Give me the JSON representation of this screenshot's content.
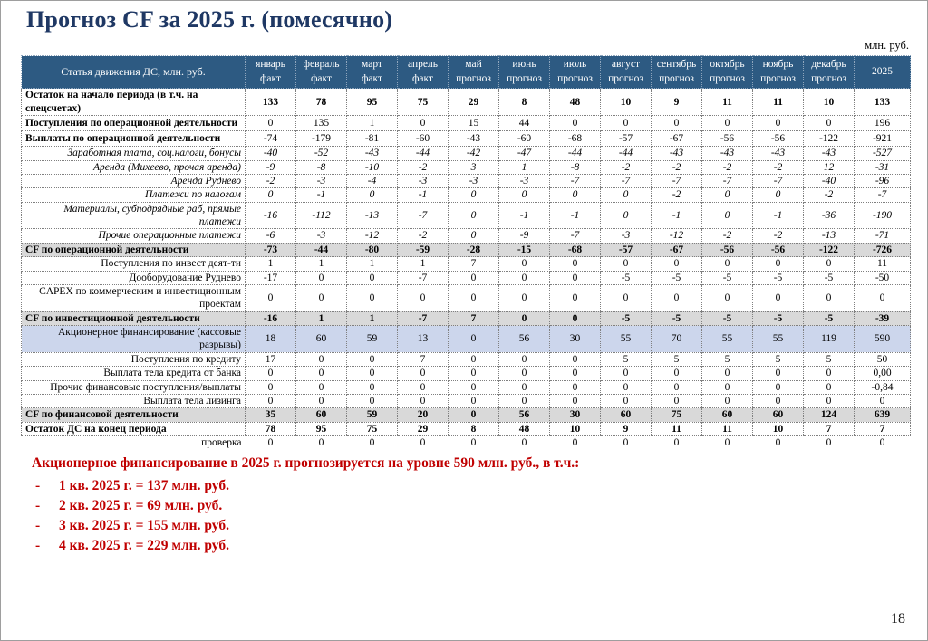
{
  "slide": {
    "title": "Прогноз CF за 2025 г. (помесячно)",
    "unit_label": "млн. руб.",
    "page_number": "18"
  },
  "colors": {
    "header_bg": "#2D5A82",
    "cf_row_bg": "#D9D9D9",
    "equity_row_bg": "#CCD6EC",
    "title": "#1F3864",
    "note_text": "#C00000"
  },
  "table": {
    "label_header": "Статья движения ДС, млн. руб.",
    "columns": [
      {
        "month": "январь",
        "period": "факт"
      },
      {
        "month": "февраль",
        "period": "факт"
      },
      {
        "month": "март",
        "period": "факт"
      },
      {
        "month": "апрель",
        "period": "факт"
      },
      {
        "month": "май",
        "period": "прогноз"
      },
      {
        "month": "июнь",
        "period": "прогноз"
      },
      {
        "month": "июль",
        "period": "прогноз"
      },
      {
        "month": "август",
        "period": "прогноз"
      },
      {
        "month": "сентябрь",
        "period": "прогноз"
      },
      {
        "month": "октябрь",
        "period": "прогноз"
      },
      {
        "month": "ноябрь",
        "period": "прогноз"
      },
      {
        "month": "декабрь",
        "period": "прогноз"
      },
      {
        "month": "2025",
        "period": ""
      }
    ],
    "rows": [
      {
        "label": "Остаток на начало периода (в т.ч. на спецсчетах)",
        "style": "start",
        "values": [
          133,
          78,
          95,
          75,
          29,
          8,
          48,
          10,
          9,
          11,
          11,
          10,
          133
        ]
      },
      {
        "label": "Поступления по операционной деятельности",
        "style": "section",
        "values": [
          0,
          135,
          1,
          0,
          15,
          44,
          0,
          0,
          0,
          0,
          0,
          0,
          196
        ]
      },
      {
        "label": "Выплаты по операционной деятельности",
        "style": "section",
        "values": [
          -74,
          -179,
          -81,
          -60,
          -43,
          -60,
          -68,
          -57,
          -67,
          -56,
          -56,
          -122,
          -921
        ]
      },
      {
        "label": "Заработная плата, соц.налоги, бонусы",
        "style": "item-italic",
        "values": [
          -40,
          -52,
          -43,
          -44,
          -42,
          -47,
          -44,
          -44,
          -43,
          -43,
          -43,
          -43,
          -527
        ]
      },
      {
        "label": "Аренда (Михеево, прочая аренда)",
        "style": "item-italic",
        "values": [
          -9,
          -8,
          -10,
          -2,
          3,
          1,
          -8,
          -2,
          -2,
          -2,
          -2,
          12,
          -31
        ]
      },
      {
        "label": "Аренда Руднево",
        "style": "item-italic",
        "values": [
          -2,
          -3,
          -4,
          -3,
          -3,
          -3,
          -7,
          -7,
          -7,
          -7,
          -7,
          -40,
          -96
        ]
      },
      {
        "label": "Платежи по налогам",
        "style": "item-italic",
        "values": [
          0,
          -1,
          0,
          -1,
          0,
          0,
          0,
          0,
          -2,
          0,
          0,
          -2,
          -7
        ]
      },
      {
        "label": "Материалы, субподрядные раб, прямые платежи",
        "style": "item-italic",
        "values": [
          -16,
          -112,
          -13,
          -7,
          0,
          -1,
          -1,
          0,
          -1,
          0,
          -1,
          -36,
          -190
        ]
      },
      {
        "label": "Прочие операционные платежи",
        "style": "item-italic",
        "values": [
          -6,
          -3,
          -12,
          -2,
          0,
          -9,
          -7,
          -3,
          -12,
          -2,
          -2,
          -13,
          -71
        ]
      },
      {
        "label": "CF по операционной деятельности",
        "style": "cf-row",
        "values": [
          -73,
          -44,
          -80,
          -59,
          -28,
          -15,
          -68,
          -57,
          -67,
          -56,
          -56,
          -122,
          -726
        ]
      },
      {
        "label": "Поступления по инвест деят-ти",
        "style": "item",
        "values": [
          1,
          1,
          1,
          1,
          7,
          0,
          0,
          0,
          0,
          0,
          0,
          0,
          11
        ]
      },
      {
        "label": "Дооборудование Руднево",
        "style": "item",
        "values": [
          -17,
          0,
          0,
          -7,
          0,
          0,
          0,
          -5,
          -5,
          -5,
          -5,
          -5,
          -50
        ]
      },
      {
        "label": "CAPEX по коммерческим и инвестиционным проектам",
        "style": "item",
        "values": [
          0,
          0,
          0,
          0,
          0,
          0,
          0,
          0,
          0,
          0,
          0,
          0,
          0
        ]
      },
      {
        "label": "CF по инвестиционной деятельности",
        "style": "cf-row",
        "values": [
          -16,
          1,
          1,
          -7,
          7,
          0,
          0,
          -5,
          -5,
          -5,
          -5,
          -5,
          -39
        ]
      },
      {
        "label": "Акционерное финансирование (кассовые разрывы)",
        "style": "equity",
        "values": [
          18,
          60,
          59,
          13,
          0,
          56,
          30,
          55,
          70,
          55,
          55,
          119,
          590
        ]
      },
      {
        "label": "Поступления по кредиту",
        "style": "item",
        "values": [
          17,
          0,
          0,
          7,
          0,
          0,
          0,
          5,
          5,
          5,
          5,
          5,
          50
        ]
      },
      {
        "label": "Выплата тела кредита от банка",
        "style": "item",
        "values": [
          0,
          0,
          0,
          0,
          0,
          0,
          0,
          0,
          0,
          0,
          0,
          0,
          "0,00"
        ]
      },
      {
        "label": "Прочие финансовые поступления/выплаты",
        "style": "item",
        "values": [
          0,
          0,
          0,
          0,
          0,
          0,
          0,
          0,
          0,
          0,
          0,
          0,
          "-0,84"
        ]
      },
      {
        "label": "Выплата тела лизинга",
        "style": "item",
        "values": [
          0,
          0,
          0,
          0,
          0,
          0,
          0,
          0,
          0,
          0,
          0,
          0,
          0
        ]
      },
      {
        "label": "CF по финансовой деятельности",
        "style": "cf-row",
        "values": [
          35,
          60,
          59,
          20,
          0,
          56,
          30,
          60,
          75,
          60,
          60,
          124,
          639
        ]
      },
      {
        "label": "Остаток ДС на конец периода",
        "style": "end",
        "values": [
          78,
          95,
          75,
          29,
          8,
          48,
          10,
          9,
          11,
          11,
          10,
          7,
          7
        ]
      },
      {
        "label": "проверка",
        "style": "check",
        "values": [
          0,
          0,
          0,
          0,
          0,
          0,
          0,
          0,
          0,
          0,
          0,
          0,
          0
        ]
      }
    ]
  },
  "note": {
    "heading": "Акционерное финансирование в 2025 г. прогнозируется на уровне 590 млн. руб., в т.ч.:",
    "bullet": "-",
    "items": [
      "1 кв. 2025 г. = 137 млн. руб.",
      "2 кв. 2025 г. = 69 млн. руб.",
      "3 кв. 2025 г. = 155 млн. руб.",
      "4 кв. 2025 г. = 229 млн. руб."
    ]
  }
}
